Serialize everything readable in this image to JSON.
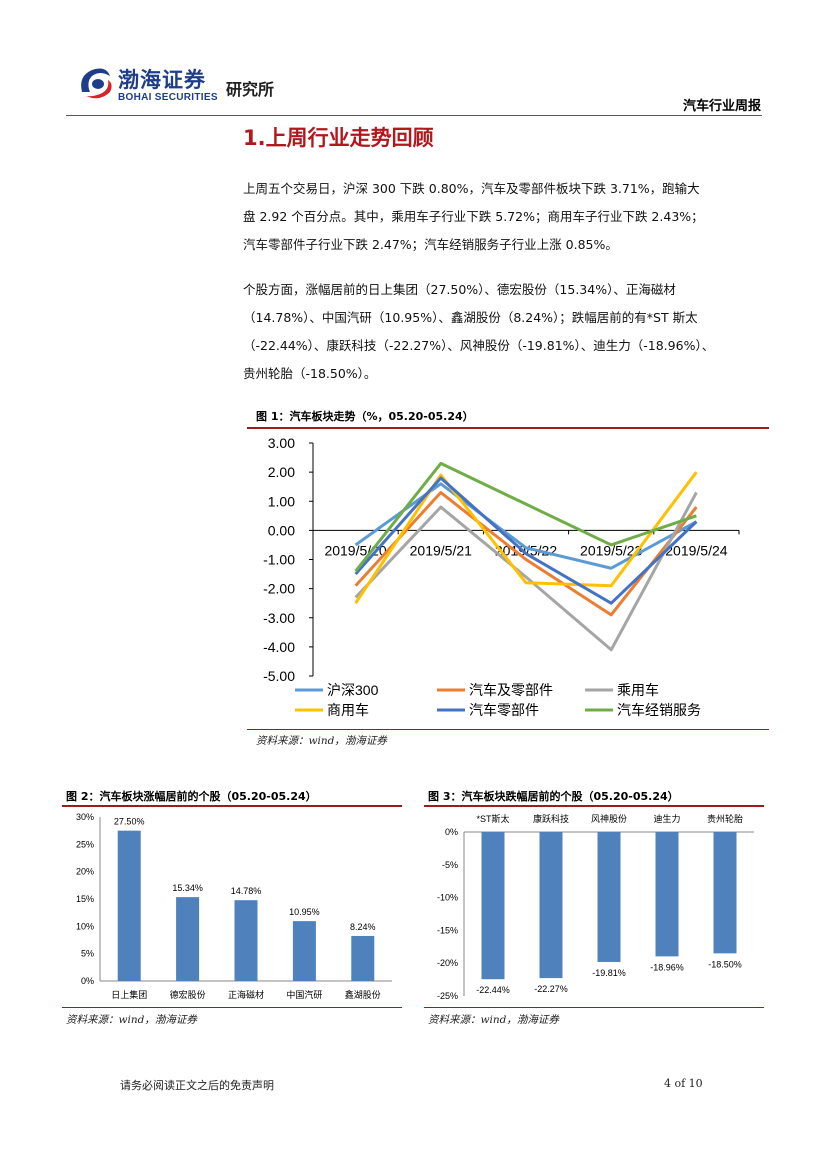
{
  "header": {
    "logo_cn": "渤海证券",
    "logo_en": "BOHAI SECURITIES",
    "institute": "研究所",
    "report_type": "汽车行业周报"
  },
  "section": {
    "title": "1.上周行业走势回顾",
    "para1": [
      "上周五个交易日，沪深 300 下跌 0.80%，汽车及零部件板块下跌 3.71%，跑输大",
      "盘 2.92 个百分点。其中，乘用车子行业下跌 5.72%；商用车子行业下跌 2.43%；",
      "汽车零部件子行业下跌 2.47%；汽车经销服务子行业上涨 0.85%。"
    ],
    "para2": [
      "个股方面，涨幅居前的日上集团（27.50%）、德宏股份（15.34%）、正海磁材",
      "（14.78%）、中国汽研（10.95%）、鑫湖股份（8.24%）；跌幅居前的有*ST 斯太",
      "（-22.44%）、康跃科技（-22.27%）、风神股份（-19.81%）、迪生力（-18.96%）、",
      "贵州轮胎（-18.50%）。"
    ]
  },
  "fig1": {
    "title": "图 1：汽车板块走势（%，05.20-05.24）",
    "source": "资料来源：wind，渤海证券"
  },
  "fig2": {
    "title": "图 2：汽车板块涨幅居前的个股（05.20-05.24）",
    "source": "资料来源：wind，渤海证券"
  },
  "fig3": {
    "title": "图 3：汽车板块跌幅居前的个股（05.20-05.24）",
    "source": "资料来源：wind，渤海证券"
  },
  "footer": {
    "disclaimer": "请务必阅读正文之后的免责声明",
    "page": "4 of 10"
  },
  "chart_data": [
    {
      "type": "line",
      "x": [
        "2019/5/20",
        "2019/5/21",
        "2019/5/22",
        "2019/5/23",
        "2019/5/24"
      ],
      "ylim": [
        -5,
        3
      ],
      "yticks": [
        "3.00",
        "2.00",
        "1.00",
        "0.00",
        "-1.00",
        "-2.00",
        "-3.00",
        "-4.00",
        "-5.00"
      ],
      "legend": "bottom",
      "series": [
        {
          "name": "沪深300",
          "color": "#5b9bd5",
          "values": [
            -0.5,
            1.6,
            -0.6,
            -1.3,
            0.3
          ]
        },
        {
          "name": "汽车及零部件",
          "color": "#ed7d31",
          "values": [
            -1.9,
            1.3,
            -1.0,
            -2.9,
            0.8
          ]
        },
        {
          "name": "乘用车",
          "color": "#a5a5a5",
          "values": [
            -2.3,
            0.8,
            -1.6,
            -4.1,
            1.3
          ]
        },
        {
          "name": "商用车",
          "color": "#ffc000",
          "values": [
            -2.5,
            1.9,
            -1.8,
            -1.9,
            2.0
          ]
        },
        {
          "name": "汽车零部件",
          "color": "#4472c4",
          "values": [
            -1.5,
            1.8,
            -0.8,
            -2.5,
            0.3
          ]
        },
        {
          "name": "汽车经销服务",
          "color": "#70ad47",
          "values": [
            -1.4,
            2.3,
            0.9,
            -0.5,
            0.5
          ]
        }
      ]
    },
    {
      "type": "bar",
      "categories": [
        "日上集团",
        "德宏股份",
        "正海磁材",
        "中国汽研",
        "鑫湖股份"
      ],
      "values": [
        27.5,
        15.34,
        14.78,
        10.95,
        8.24
      ],
      "labels": [
        "27.50%",
        "15.34%",
        "14.78%",
        "10.95%",
        "8.24%"
      ],
      "ylim": [
        0,
        30
      ],
      "yticks": [
        "30%",
        "25%",
        "20%",
        "15%",
        "10%",
        "5%",
        "0%"
      ],
      "color": "#4f81bd"
    },
    {
      "type": "bar",
      "categories": [
        "*ST斯太",
        "康跃科技",
        "风神股份",
        "迪生力",
        "贵州轮胎"
      ],
      "values": [
        -22.44,
        -22.27,
        -19.81,
        -18.96,
        -18.5
      ],
      "labels": [
        "-22.44%",
        "-22.27%",
        "-19.81%",
        "-18.96%",
        "-18.50%"
      ],
      "ylim": [
        -25,
        0
      ],
      "yticks": [
        "0%",
        "-5%",
        "-10%",
        "-15%",
        "-20%",
        "-25%"
      ],
      "color": "#4f81bd"
    }
  ]
}
